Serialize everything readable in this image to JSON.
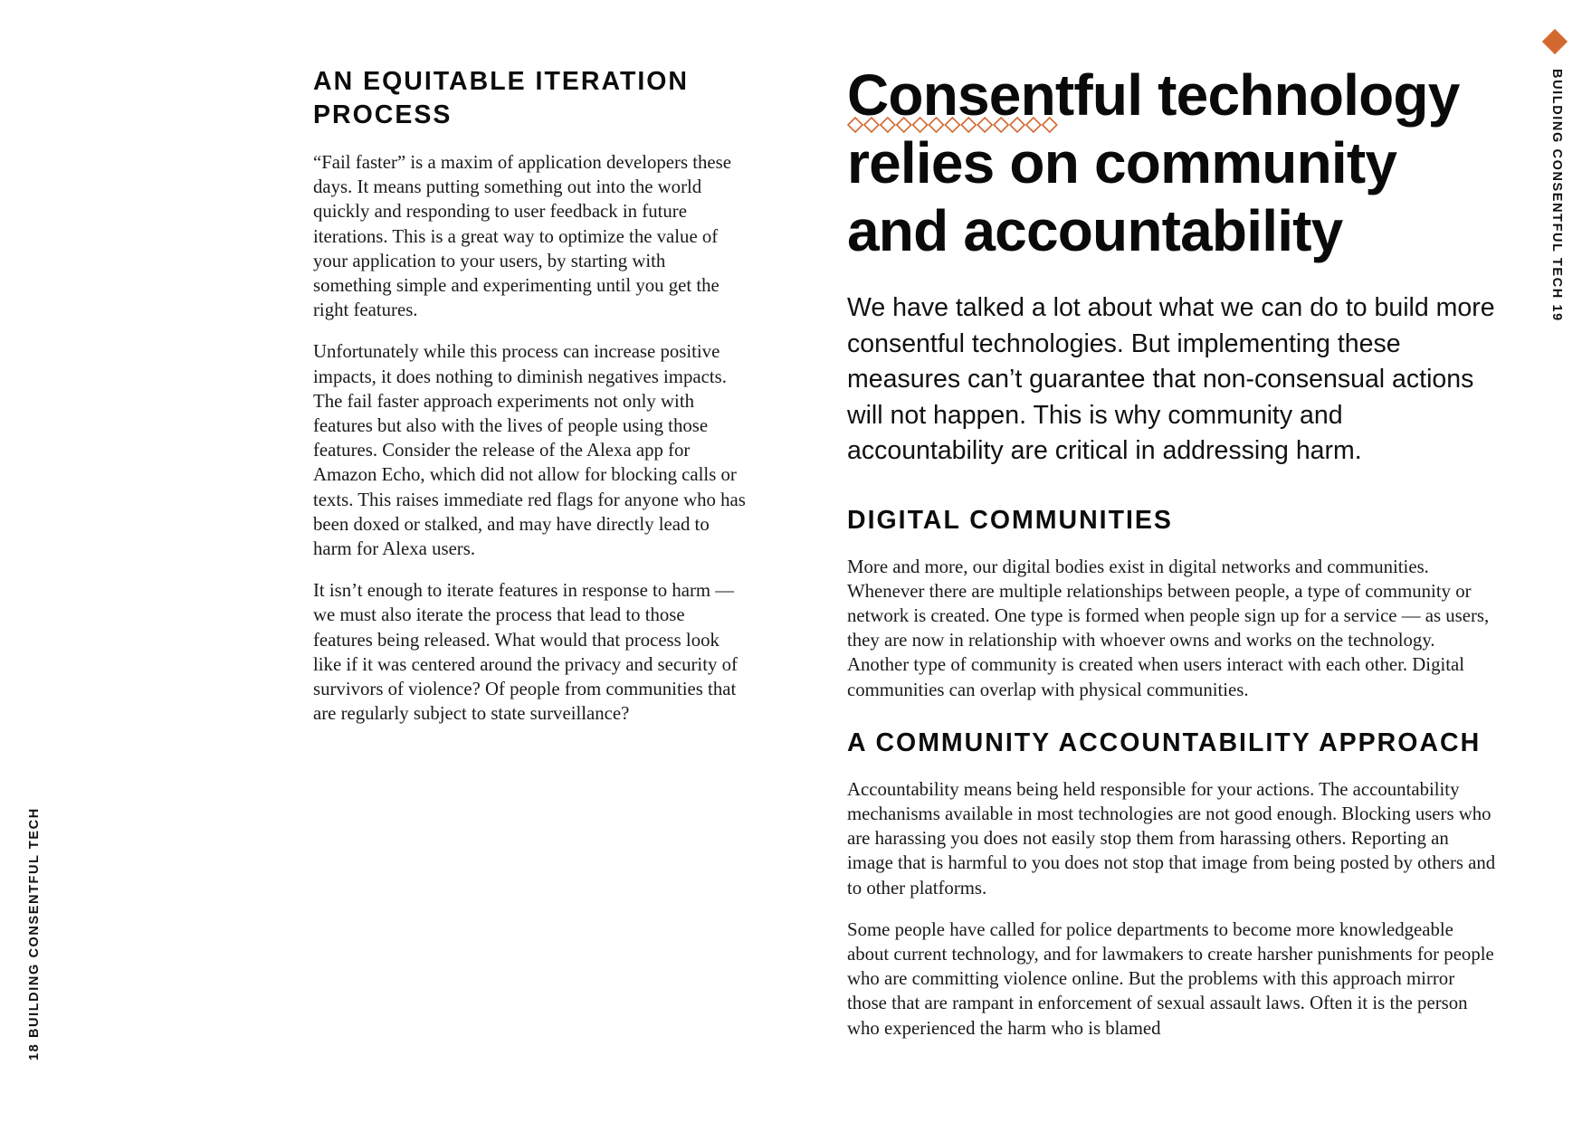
{
  "left_page": {
    "running_header": "18 BUILDING CONSENTFUL TECH",
    "heading": "AN EQUITABLE ITERATION PROCESS",
    "paragraphs": [
      "“Fail faster” is a maxim of application developers these days. It means putting something out into the world quickly and responding to user feedback in future iterations. This is a great way to optimize the value of your application to your users, by starting with something simple and experimenting until you get the right features.",
      "Unfortunately while this process can increase positive impacts, it does nothing to diminish negatives impacts. The fail faster approach experiments not only with features but also with the lives of people using those features. Consider the release of the Alexa app for Amazon Echo, which did not allow for blocking calls or texts. This raises immediate red flags for anyone who has been doxed or stalked, and may have directly lead to harm for Alexa users.",
      "It isn’t enough to iterate features in response to harm — we must also iterate the process that lead to those features being released. What would that process look like if it was centered around the privacy and security of survivors of violence? Of people from communities that are regularly subject to state surveillance?"
    ]
  },
  "right_page": {
    "running_header": "BUILDING CONSENTFUL TECH 19",
    "title": "Consentful technology relies on community and accountability",
    "lede": "We have talked a lot about what we can do to build more consentful technologies. But implementing these measures can’t guarantee that non-consensual actions will not happen. This is why community and accountability are critical in addressing harm.",
    "section1_heading": "DIGITAL COMMUNITIES",
    "section1_paragraphs": [
      "More and more, our digital bodies exist in digital networks and communities. Whenever there are multiple relationships between people, a type of community or network is created. One type is formed when people sign up for a service — as users, they are now in relationship with whoever owns and works on the technology. Another type of community is created when users interact with each other. Digital communities can overlap with physical communities."
    ],
    "section2_heading": "A COMMUNITY ACCOUNTABILITY APPROACH",
    "section2_paragraphs": [
      "Accountability means being held responsible for your actions. The accountability mechanisms available in most technologies are not good enough. Blocking users who are harassing you does not easily stop them from harassing others. Reporting an image that is harmful to you does not stop that image from being posted by others and to other platforms.",
      "Some people have called for police departments to become more knowledgeable about current technology, and for lawmakers to create harsher punishments for people who are committing violence online. But the problems with this approach mirror those that are rampant in enforcement of sexual assault laws. Often it is the person who experienced the harm who is blamed"
    ]
  },
  "accent_color": "#d4692f"
}
